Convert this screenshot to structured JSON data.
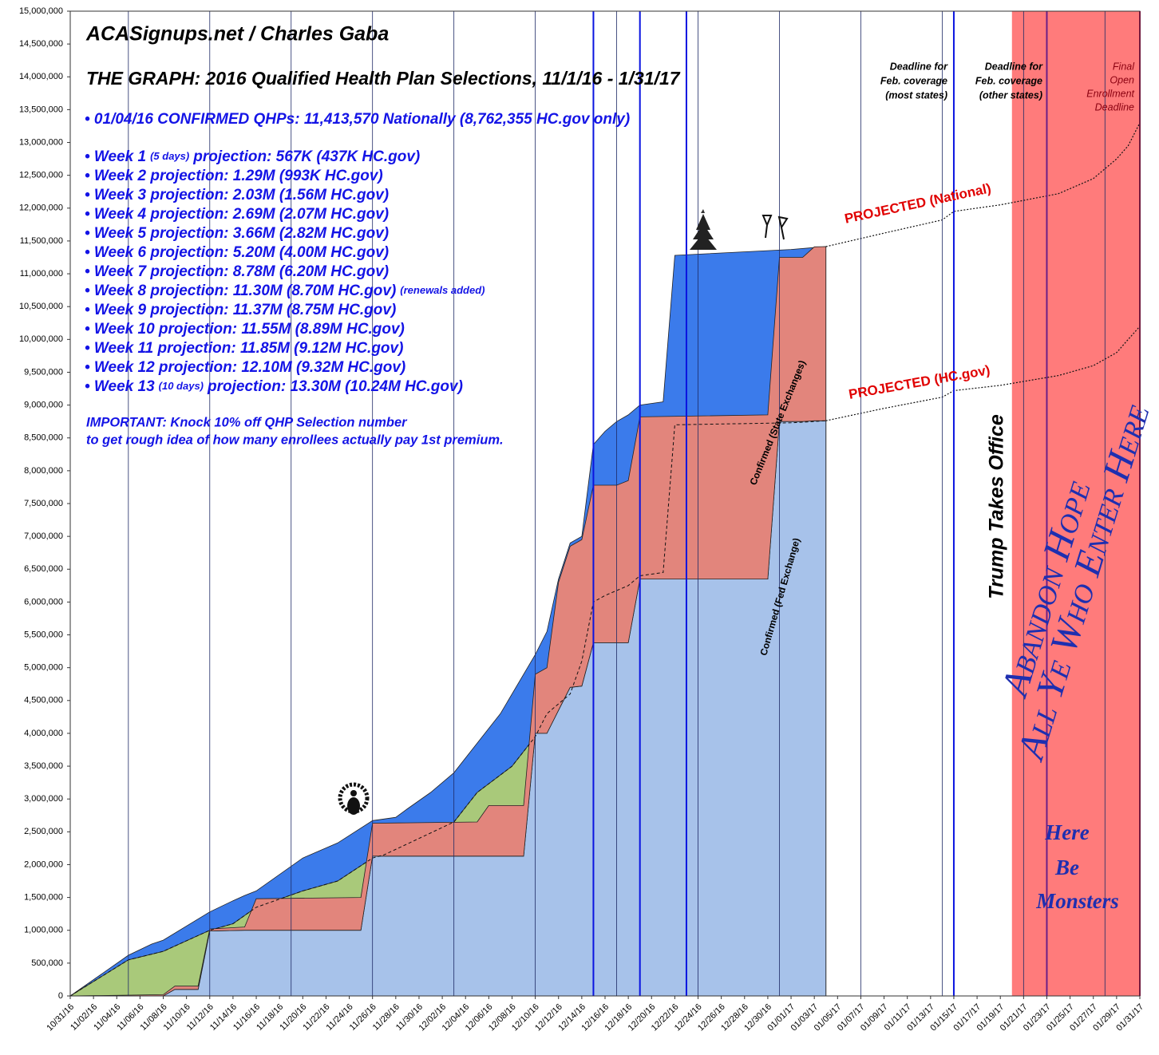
{
  "chart_data": {
    "type": "area",
    "title": "ACASignups.net / Charles Gaba",
    "subtitle": "THE GRAPH: 2016 Qualified Health Plan Selections, 11/1/16 - 1/31/17",
    "summary": "• 01/04/16 CONFIRMED QHPs: 11,413,570 Nationally (8,762,355 HC.gov only)",
    "projections": [
      {
        "text": "• Week 1",
        "note": "(5 days)",
        "after": "projection: 567K (437K HC.gov)"
      },
      {
        "text": "• Week 2 projection: 1.29M (993K HC.gov)"
      },
      {
        "text": "• Week 3 projection: 2.03M (1.56M HC.gov)"
      },
      {
        "text": "• Week 4 projection: 2.69M (2.07M HC.gov)"
      },
      {
        "text": "• Week 5 projection: 3.66M (2.82M HC.gov)"
      },
      {
        "text": "• Week 6 projection: 5.20M (4.00M HC.gov)"
      },
      {
        "text": "• Week 7 projection: 8.78M (6.20M HC.gov)"
      },
      {
        "text": "• Week 8 projection: 11.30M (8.70M HC.gov)",
        "note": "(renewals added)"
      },
      {
        "text": "• Week 9 projection: 11.37M (8.75M HC.gov)"
      },
      {
        "text": "• Week 10 projection: 11.55M (8.89M HC.gov)"
      },
      {
        "text": "• Week 11 projection: 11.85M (9.12M HC.gov)"
      },
      {
        "text": "• Week 12 projection: 12.10M (9.32M HC.gov)"
      },
      {
        "text": "• Week 13",
        "note": "(10 days)",
        "after": "projection: 13.30M (10.24M HC.gov)"
      }
    ],
    "important": [
      "IMPORTANT: Knock 10% off QHP Selection number",
      "to get rough idea of how many enrollees actually pay 1st premium."
    ],
    "deadline_most": [
      "Deadline for",
      "Feb. coverage",
      "(most states)"
    ],
    "deadline_other": [
      "Deadline for",
      "Feb. coverage",
      "(other states)"
    ],
    "final_deadline": [
      "Final",
      "Open",
      "Enrollment",
      "Deadline"
    ],
    "trump": "Trump Takes Office",
    "abandon": [
      "Abandon Hope",
      "All Ye Who Enter Here"
    ],
    "monsters": [
      "Here",
      "Be",
      "Monsters"
    ],
    "xlim": [
      "10/31/16",
      "01/31/17"
    ],
    "xticks": [
      "10/31/16",
      "11/02/16",
      "11/04/16",
      "11/06/16",
      "11/08/16",
      "11/10/16",
      "11/12/16",
      "11/14/16",
      "11/16/16",
      "11/18/16",
      "11/20/16",
      "11/22/16",
      "11/24/16",
      "11/26/16",
      "11/28/16",
      "11/30/16",
      "12/02/16",
      "12/04/16",
      "12/06/16",
      "12/08/16",
      "12/10/16",
      "12/12/16",
      "12/14/16",
      "12/16/16",
      "12/18/16",
      "12/20/16",
      "12/22/16",
      "12/24/16",
      "12/26/16",
      "12/28/16",
      "12/30/16",
      "01/01/17",
      "01/03/17",
      "01/05/17",
      "01/07/17",
      "01/09/17",
      "01/11/17",
      "01/13/17",
      "01/15/17",
      "01/17/17",
      "01/19/17",
      "01/21/17",
      "01/23/17",
      "01/25/17",
      "01/27/17",
      "01/29/17",
      "01/31/17"
    ],
    "xgrid": [
      "11/05/16",
      "11/12/16",
      "11/19/16",
      "11/26/16",
      "12/03/16",
      "12/10/16",
      "12/17/16",
      "12/24/16",
      "12/31/16",
      "01/07/17",
      "01/14/17",
      "01/21/17",
      "01/28/17"
    ],
    "ylim": [
      0,
      15000000
    ],
    "yticks": [
      0,
      {
        "value": 500000,
        "label": "500,000"
      },
      {
        "value": 1000000,
        "label": "1,000,000"
      },
      {
        "value": 1500000,
        "label": "1,500,000"
      },
      {
        "value": 2000000,
        "label": "2,000,000"
      },
      {
        "value": 2500000,
        "label": "2,500,000"
      },
      {
        "value": 3000000,
        "label": "3,000,000"
      },
      {
        "value": 3500000,
        "label": "3,500,000"
      },
      {
        "value": 4000000,
        "label": "4,000,000"
      },
      {
        "value": 4500000,
        "label": "4,500,000"
      },
      {
        "value": 5000000,
        "label": "5,000,000"
      },
      {
        "value": 5500000,
        "label": "5,500,000"
      },
      {
        "value": 6000000,
        "label": "6,000,000"
      },
      {
        "value": 6500000,
        "label": "6,500,000"
      },
      {
        "value": 7000000,
        "label": "7,000,000"
      },
      {
        "value": 7500000,
        "label": "7,500,000"
      },
      {
        "value": 8000000,
        "label": "8,000,000"
      },
      {
        "value": 8500000,
        "label": "8,500,000"
      },
      {
        "value": 9000000,
        "label": "9,000,000"
      },
      {
        "value": 9500000,
        "label": "9,500,000"
      },
      {
        "value": 10000000,
        "label": "10,000,000"
      },
      {
        "value": 10500000,
        "label": "10,500,000"
      },
      {
        "value": 11000000,
        "label": "11,000,000"
      },
      {
        "value": 11500000,
        "label": "11,500,000"
      },
      {
        "value": 12000000,
        "label": "12,000,000"
      },
      {
        "value": 12500000,
        "label": "12,500,000"
      },
      {
        "value": 13000000,
        "label": "13,000,000"
      },
      {
        "value": 13500000,
        "label": "13,500,000"
      },
      {
        "value": 14000000,
        "label": "14,000,000"
      },
      {
        "value": 14500000,
        "label": "14,500,000"
      },
      {
        "value": 15000000,
        "label": "15,000,000"
      }
    ],
    "shaded_region": {
      "from": "01/20/17",
      "to": "01/31/17",
      "color": "#ff7b7b"
    },
    "marker_lines": [
      {
        "x": "12/15/16",
        "color": "#0a14e0"
      },
      {
        "x": "12/19/16",
        "color": "#0a14e0"
      },
      {
        "x": "12/23/16",
        "color": "#0a14e0"
      },
      {
        "x": "01/15/17",
        "color": "#0a14e0"
      },
      {
        "x": "01/23/17",
        "color": "#6b1f86"
      },
      {
        "x": "01/31/17",
        "color": "#b00048"
      }
    ],
    "series": [
      {
        "color": "#3b7beb",
        "x": [
          "10/31/16",
          "11/05/16",
          "11/07/16",
          "11/08/16",
          "11/12/16",
          "11/14/16",
          "11/15/16",
          "11/16/16",
          "11/20/16",
          "11/23/16",
          "11/26/16",
          "11/28/16",
          "11/29/16",
          "12/01/16",
          "12/03/16",
          "12/05/16",
          "12/07/16",
          "12/10/16",
          "12/11/16",
          "12/12/16",
          "12/13/16",
          "12/14/16",
          "12/15/16",
          "12/16/16",
          "12/17/16",
          "12/18/16",
          "12/19/16",
          "12/21/16",
          "12/22/16",
          "01/01/17",
          "01/03/17",
          "01/04/17"
        ],
        "values": [
          0,
          620000,
          790000,
          850000,
          1280000,
          1450000,
          1530000,
          1600000,
          2100000,
          2330000,
          2670000,
          2720000,
          2850000,
          3100000,
          3400000,
          3850000,
          4300000,
          5200000,
          5550000,
          6350000,
          6900000,
          7000000,
          8400000,
          8600000,
          8750000,
          8850000,
          9000000,
          9050000,
          11280000,
          11370000,
          11400000,
          11413570
        ]
      },
      {
        "color": "#a9c97a",
        "line": "dashed",
        "x": [
          "10/31/16",
          "11/05/16",
          "11/08/16",
          "11/12/16",
          "11/14/16",
          "11/16/16",
          "11/20/16",
          "11/23/16",
          "11/26/16",
          "11/27/16",
          "11/30/16",
          "12/03/16",
          "12/05/16",
          "12/08/16",
          "12/10/16",
          "12/11/16",
          "12/13/16",
          "12/14/16",
          "12/15/16",
          "12/16/16",
          "12/18/16",
          "12/19/16",
          "12/21/16",
          "12/22/16",
          "01/01/17",
          "01/03/17",
          "01/04/17"
        ],
        "values": [
          0,
          550000,
          680000,
          1000000,
          1100000,
          1350000,
          1600000,
          1750000,
          2100000,
          2150000,
          2400000,
          2650000,
          3100000,
          3500000,
          3950000,
          4300000,
          4600000,
          5100000,
          6000000,
          6100000,
          6250000,
          6400000,
          6450000,
          8700000,
          8730000,
          8750000,
          8762355
        ]
      },
      {
        "name": "Confirmed (Fed Exchange)",
        "color": "#a7c2ea",
        "stack": true,
        "x": [
          "10/31/16",
          "11/08/16",
          "11/09/16",
          "11/11/16",
          "11/12/16",
          "11/15/16",
          "11/16/16",
          "11/25/16",
          "11/26/16",
          "12/05/16",
          "12/06/16",
          "12/09/16",
          "12/10/16",
          "12/11/16",
          "12/12/16",
          "12/13/16",
          "12/14/16",
          "12/15/16",
          "12/17/16",
          "12/18/16",
          "12/19/16",
          "12/30/16",
          "12/31/16",
          "01/02/17",
          "01/03/17",
          "01/04/17"
        ],
        "values": [
          0,
          0,
          100000,
          100000,
          990000,
          1000000,
          1000000,
          1000000,
          2130000,
          2130000,
          2130000,
          2130000,
          4000000,
          4000000,
          4350000,
          4700000,
          4720000,
          5380000,
          5380000,
          5380000,
          6350000,
          6350000,
          8750000,
          8750000,
          8760000,
          8762355
        ]
      },
      {
        "name": "Confirmed (State Exchanges)",
        "color": "#e2857c",
        "stack": true,
        "x": [
          "10/31/16",
          "11/08/16",
          "11/09/16",
          "11/11/16",
          "11/12/16",
          "11/15/16",
          "11/16/16",
          "11/25/16",
          "11/26/16",
          "12/05/16",
          "12/06/16",
          "12/09/16",
          "12/10/16",
          "12/11/16",
          "12/12/16",
          "12/13/16",
          "12/14/16",
          "12/15/16",
          "12/17/16",
          "12/18/16",
          "12/19/16",
          "12/30/16",
          "12/31/16",
          "01/02/17",
          "01/03/17",
          "01/04/17"
        ],
        "values": [
          0,
          20000,
          50000,
          50000,
          30000,
          50000,
          480000,
          500000,
          500000,
          520000,
          770000,
          770000,
          900000,
          1000000,
          1950000,
          2150000,
          2230000,
          2400000,
          2400000,
          2470000,
          2470000,
          2500000,
          2500000,
          2500000,
          2650000,
          2651215
        ]
      },
      {
        "name": "PROJECTED (National)",
        "line": "dotted",
        "x": [
          "01/04/17",
          "01/09/17",
          "01/14/17",
          "01/15/17",
          "01/19/17",
          "01/24/17",
          "01/27/17",
          "01/29/17",
          "01/30/17",
          "01/31/17"
        ],
        "values": [
          11413570,
          11620000,
          11820000,
          11950000,
          12050000,
          12220000,
          12450000,
          12750000,
          12950000,
          13300000
        ]
      },
      {
        "name": "PROJECTED (HC.gov)",
        "line": "dotted",
        "x": [
          "01/04/17",
          "01/09/17",
          "01/14/17",
          "01/15/17",
          "01/19/17",
          "01/24/17",
          "01/27/17",
          "01/29/17",
          "01/30/17",
          "01/31/17"
        ],
        "values": [
          8762355,
          8950000,
          9120000,
          9220000,
          9300000,
          9450000,
          9600000,
          9800000,
          10000000,
          10200000
        ]
      }
    ]
  }
}
